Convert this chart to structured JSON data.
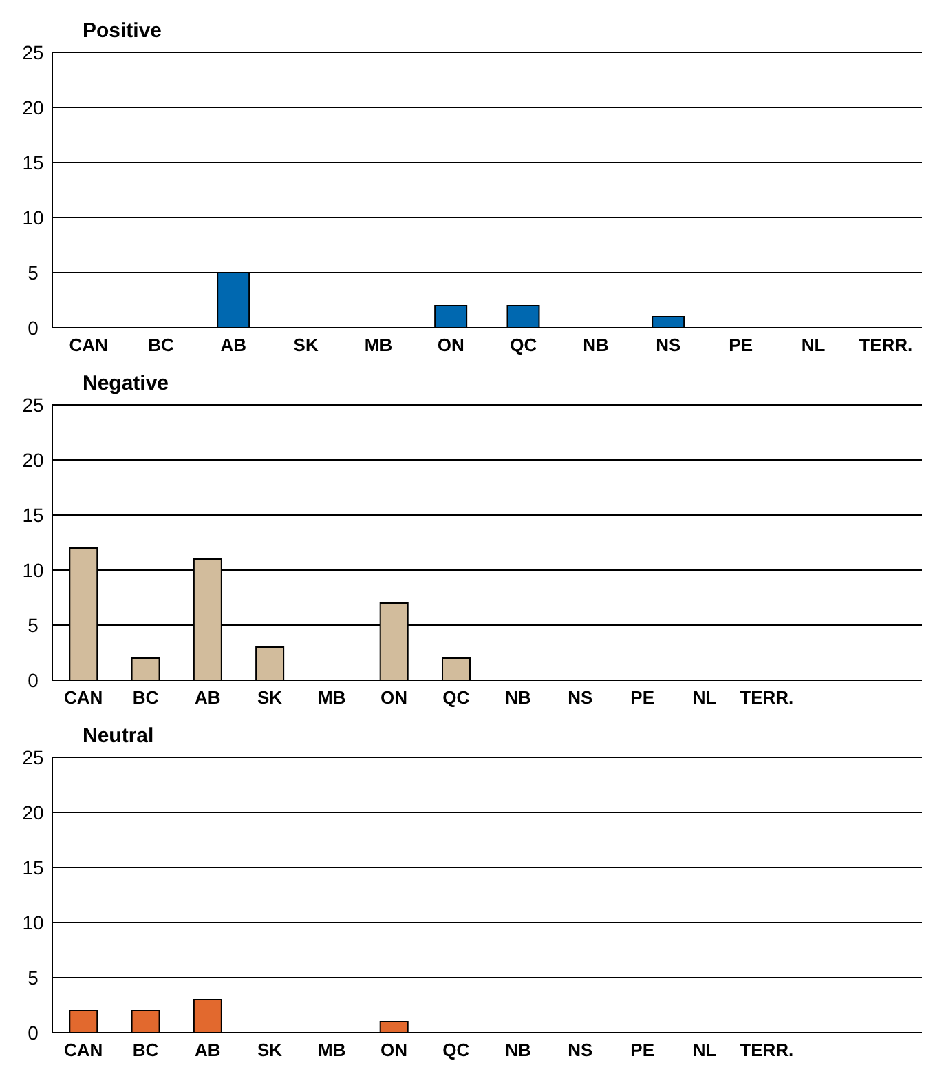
{
  "chart_data": [
    {
      "type": "bar",
      "title": "Positive",
      "categories": [
        "CAN",
        "BC",
        "AB",
        "SK",
        "MB",
        "ON",
        "QC",
        "NB",
        "NS",
        "PE",
        "NL",
        "TERR."
      ],
      "values": [
        0,
        0,
        5,
        0,
        0,
        2,
        2,
        0,
        1,
        0,
        0,
        0
      ],
      "color": "#0068b0",
      "ylim": [
        0,
        25
      ],
      "yticks": [
        0,
        5,
        10,
        15,
        20,
        25
      ],
      "grid": "y"
    },
    {
      "type": "bar",
      "title": "Negative",
      "categories": [
        "CAN",
        "BC",
        "AB",
        "SK",
        "MB",
        "ON",
        "QC",
        "NB",
        "NS",
        "PE",
        "NL",
        "TERR.",
        null,
        null
      ],
      "values": [
        12,
        2,
        11,
        3,
        0,
        7,
        2,
        0,
        0,
        0,
        0,
        0,
        0,
        0
      ],
      "color": "#d2bc9c",
      "ylim": [
        0,
        25
      ],
      "yticks": [
        0,
        5,
        10,
        15,
        20,
        25
      ],
      "grid": "y"
    },
    {
      "type": "bar",
      "title": "Neutral",
      "categories": [
        "CAN",
        "BC",
        "AB",
        "SK",
        "MB",
        "ON",
        "QC",
        "NB",
        "NS",
        "PE",
        "NL",
        "TERR.",
        null,
        null
      ],
      "values": [
        2,
        2,
        3,
        0,
        0,
        1,
        0,
        0,
        0,
        0,
        0,
        0,
        0,
        0
      ],
      "color": "#e2692e",
      "ylim": [
        0,
        25
      ],
      "yticks": [
        0,
        5,
        10,
        15,
        20,
        25
      ],
      "grid": "y"
    }
  ]
}
